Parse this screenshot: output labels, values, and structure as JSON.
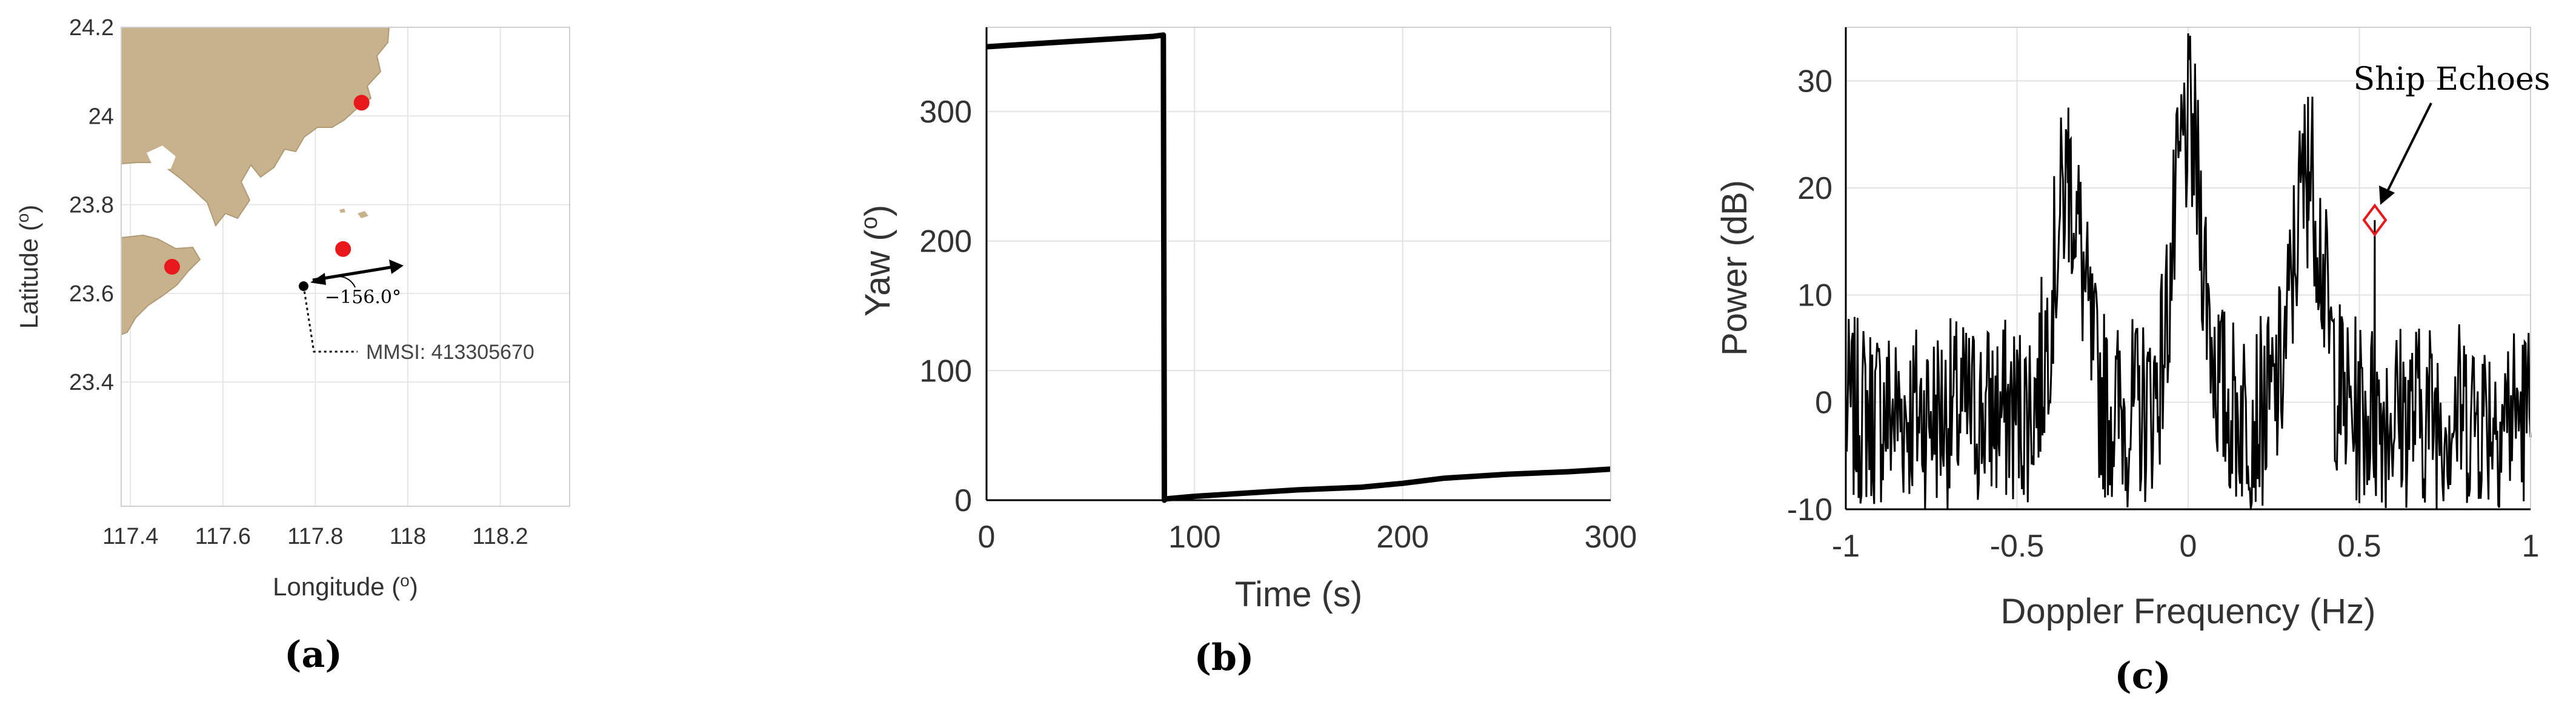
{
  "figure": {
    "panel_labels": [
      "(a)",
      "(b)",
      "(c)"
    ]
  },
  "chart_data": [
    {
      "type": "scatter",
      "panel": "(a)",
      "xlabel": "Longitude (o)",
      "ylabel": "Latitude (o)",
      "xlim": [
        117.38,
        118.35
      ],
      "ylim": [
        23.12,
        24.2
      ],
      "xticks": [
        117.4,
        117.6,
        117.8,
        118,
        118.2
      ],
      "xtick_labels": [
        "117.4",
        "117.6",
        "117.8",
        "118",
        "118.2"
      ],
      "yticks": [
        24.2,
        24,
        23.8,
        23.6,
        23.4
      ],
      "ytick_labels": [
        "24.2",
        "24",
        "23.8",
        "23.6",
        "23.4"
      ],
      "grid": true,
      "land_color": "#c8b28d",
      "stations": [
        {
          "lon": 117.9,
          "lat": 24.03
        },
        {
          "lon": 117.86,
          "lat": 23.7
        },
        {
          "lon": 117.49,
          "lat": 23.66
        }
      ],
      "ship": {
        "lon": 117.77,
        "lat": 23.66,
        "heading_label": "−156.0°",
        "mmsi_label": "MMSI:  413305670"
      },
      "station_color": "#e8181c"
    },
    {
      "type": "line",
      "panel": "(b)",
      "xlabel": "Time (s)",
      "ylabel": "Yaw (o)",
      "xlim": [
        0,
        300
      ],
      "ylim": [
        0,
        365
      ],
      "xticks": [
        0,
        100,
        200,
        300
      ],
      "xtick_labels": [
        "0",
        "100",
        "200",
        "300"
      ],
      "yticks": [
        0,
        100,
        200,
        300
      ],
      "ytick_labels": [
        "0",
        "100",
        "200",
        "300"
      ],
      "grid": true,
      "series": [
        {
          "x": [
            0,
            20,
            40,
            60,
            80,
            85,
            85.5,
            86,
            100,
            120,
            150,
            180,
            200,
            220,
            250,
            280,
            300
          ],
          "y": [
            350,
            352,
            354,
            356,
            358,
            359,
            0,
            1,
            3,
            5,
            8,
            10,
            13,
            17,
            20,
            22,
            24
          ]
        }
      ]
    },
    {
      "type": "line",
      "panel": "(c)",
      "xlabel": "Doppler Frequency (Hz)",
      "ylabel": "Power (dB)",
      "xlim": [
        -1,
        1
      ],
      "ylim": [
        -10,
        35
      ],
      "xticks": [
        -1,
        -0.5,
        0,
        0.5,
        1
      ],
      "xtick_labels": [
        "-1",
        "-0.5",
        "0",
        "0.5",
        "1"
      ],
      "yticks": [
        -10,
        0,
        10,
        20,
        30
      ],
      "ytick_labels": [
        "-10",
        "0",
        "10",
        "20",
        "30"
      ],
      "grid": true,
      "spectrum_peaks": [
        {
          "x": -0.35,
          "y": 27.5
        },
        {
          "x": 0.0,
          "y": 32.5
        },
        {
          "x": 0.35,
          "y": 28.5
        }
      ],
      "annotation": {
        "text": "Ship Echoes",
        "x": 0.545,
        "y": 17,
        "color": "#e8181c"
      }
    }
  ]
}
